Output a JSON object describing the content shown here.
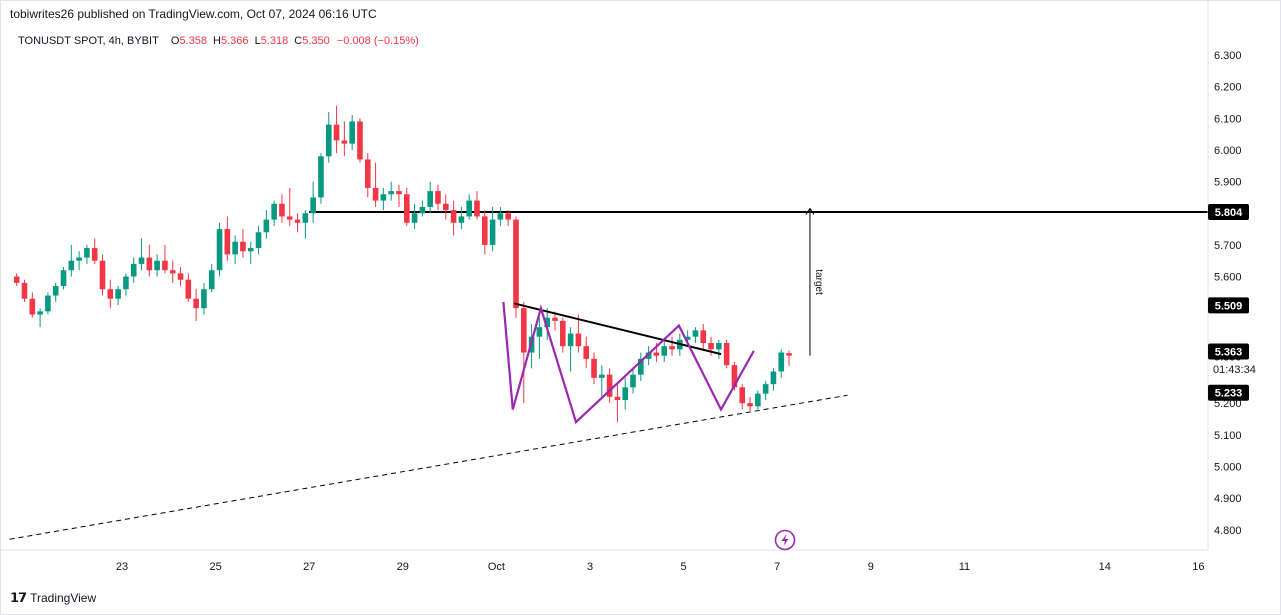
{
  "header": {
    "published": "tobiwrites26 published on TradingView.com, Oct 07, 2024 06:16 UTC",
    "symbol": "TONUSDT SPOT, 4h, BYBIT",
    "ohlc": [
      {
        "k": "O",
        "v": "5.358"
      },
      {
        "k": "H",
        "v": "5.366"
      },
      {
        "k": "L",
        "v": "5.318"
      },
      {
        "k": "C",
        "v": "5.350"
      }
    ],
    "change": "−0.008 (−0.15%)"
  },
  "footer": {
    "brand": "TradingView"
  },
  "colors": {
    "up": "#089981",
    "down": "#f23645",
    "pattern": "#9c27b0",
    "line": "#000000",
    "badge_bg": "#000000",
    "badge_text": "#ffffff"
  },
  "chart_data": {
    "type": "candlestick",
    "symbol": "TONUSDT",
    "timeframe": "4h",
    "ylim": [
      4.75,
      6.35
    ],
    "price_ticks": [
      "6.300",
      "6.200",
      "6.100",
      "6.000",
      "5.900",
      "5.800",
      "5.700",
      "5.600",
      "5.500",
      "5.400",
      "5.300",
      "5.200",
      "5.100",
      "5.000",
      "4.900",
      "4.800"
    ],
    "date_ticks": [
      {
        "label": "23",
        "day": 0
      },
      {
        "label": "25",
        "day": 2
      },
      {
        "label": "27",
        "day": 4
      },
      {
        "label": "29",
        "day": 6
      },
      {
        "label": "Oct",
        "day": 8
      },
      {
        "label": "3",
        "day": 10
      },
      {
        "label": "5",
        "day": 12
      },
      {
        "label": "7",
        "day": 14
      },
      {
        "label": "9",
        "day": 16
      },
      {
        "label": "11",
        "day": 18
      },
      {
        "label": "14",
        "day": 21
      },
      {
        "label": "16",
        "day": 23
      }
    ],
    "first_candle_day": -2.25,
    "candle_step_day": 0.1667,
    "ohlc": [
      [
        5.6,
        5.61,
        5.57,
        5.58
      ],
      [
        5.58,
        5.59,
        5.52,
        5.53
      ],
      [
        5.53,
        5.55,
        5.47,
        5.48
      ],
      [
        5.48,
        5.5,
        5.44,
        5.49
      ],
      [
        5.49,
        5.55,
        5.48,
        5.54
      ],
      [
        5.54,
        5.58,
        5.52,
        5.57
      ],
      [
        5.57,
        5.63,
        5.56,
        5.62
      ],
      [
        5.62,
        5.7,
        5.6,
        5.65
      ],
      [
        5.65,
        5.68,
        5.62,
        5.66
      ],
      [
        5.66,
        5.7,
        5.64,
        5.69
      ],
      [
        5.69,
        5.72,
        5.64,
        5.65
      ],
      [
        5.65,
        5.67,
        5.54,
        5.56
      ],
      [
        5.56,
        5.59,
        5.5,
        5.53
      ],
      [
        5.53,
        5.57,
        5.51,
        5.56
      ],
      [
        5.56,
        5.61,
        5.54,
        5.6
      ],
      [
        5.6,
        5.66,
        5.58,
        5.64
      ],
      [
        5.64,
        5.72,
        5.62,
        5.66
      ],
      [
        5.66,
        5.7,
        5.6,
        5.62
      ],
      [
        5.62,
        5.67,
        5.6,
        5.65
      ],
      [
        5.65,
        5.7,
        5.61,
        5.62
      ],
      [
        5.62,
        5.65,
        5.58,
        5.61
      ],
      [
        5.61,
        5.63,
        5.57,
        5.59
      ],
      [
        5.59,
        5.61,
        5.52,
        5.53
      ],
      [
        5.53,
        5.56,
        5.46,
        5.5
      ],
      [
        5.5,
        5.58,
        5.48,
        5.56
      ],
      [
        5.56,
        5.64,
        5.55,
        5.62
      ],
      [
        5.62,
        5.77,
        5.6,
        5.75
      ],
      [
        5.75,
        5.79,
        5.65,
        5.67
      ],
      [
        5.67,
        5.73,
        5.64,
        5.71
      ],
      [
        5.71,
        5.75,
        5.66,
        5.68
      ],
      [
        5.68,
        5.71,
        5.64,
        5.69
      ],
      [
        5.69,
        5.76,
        5.67,
        5.74
      ],
      [
        5.74,
        5.81,
        5.72,
        5.78
      ],
      [
        5.78,
        5.84,
        5.76,
        5.83
      ],
      [
        5.83,
        5.86,
        5.77,
        5.79
      ],
      [
        5.79,
        5.88,
        5.76,
        5.78
      ],
      [
        5.78,
        5.8,
        5.74,
        5.77
      ],
      [
        5.77,
        5.81,
        5.72,
        5.8
      ],
      [
        5.8,
        5.9,
        5.77,
        5.85
      ],
      [
        5.85,
        5.99,
        5.83,
        5.98
      ],
      [
        5.98,
        6.12,
        5.96,
        6.08
      ],
      [
        6.08,
        6.14,
        5.99,
        6.03
      ],
      [
        6.03,
        6.09,
        5.98,
        6.02
      ],
      [
        6.02,
        6.11,
        6.0,
        6.09
      ],
      [
        6.09,
        6.1,
        5.96,
        5.97
      ],
      [
        5.97,
        5.99,
        5.85,
        5.88
      ],
      [
        5.88,
        5.96,
        5.82,
        5.84
      ],
      [
        5.84,
        5.88,
        5.81,
        5.86
      ],
      [
        5.86,
        5.9,
        5.84,
        5.87
      ],
      [
        5.87,
        5.89,
        5.82,
        5.86
      ],
      [
        5.86,
        5.88,
        5.76,
        5.77
      ],
      [
        5.77,
        5.83,
        5.75,
        5.8
      ],
      [
        5.8,
        5.84,
        5.79,
        5.82
      ],
      [
        5.82,
        5.9,
        5.8,
        5.87
      ],
      [
        5.87,
        5.89,
        5.81,
        5.83
      ],
      [
        5.83,
        5.86,
        5.78,
        5.81
      ],
      [
        5.81,
        5.84,
        5.73,
        5.77
      ],
      [
        5.77,
        5.82,
        5.75,
        5.79
      ],
      [
        5.79,
        5.86,
        5.78,
        5.84
      ],
      [
        5.84,
        5.87,
        5.78,
        5.79
      ],
      [
        5.79,
        5.81,
        5.67,
        5.7
      ],
      [
        5.7,
        5.82,
        5.68,
        5.78
      ],
      [
        5.78,
        5.82,
        5.76,
        5.8
      ],
      [
        5.8,
        5.81,
        5.76,
        5.78
      ],
      [
        5.78,
        5.79,
        5.47,
        5.5
      ],
      [
        5.5,
        5.52,
        5.2,
        5.36
      ],
      [
        5.36,
        5.45,
        5.31,
        5.41
      ],
      [
        5.41,
        5.47,
        5.34,
        5.44
      ],
      [
        5.44,
        5.5,
        5.4,
        5.47
      ],
      [
        5.47,
        5.49,
        5.43,
        5.46
      ],
      [
        5.46,
        5.47,
        5.36,
        5.38
      ],
      [
        5.38,
        5.44,
        5.3,
        5.42
      ],
      [
        5.42,
        5.48,
        5.36,
        5.38
      ],
      [
        5.38,
        5.41,
        5.31,
        5.34
      ],
      [
        5.34,
        5.36,
        5.26,
        5.28
      ],
      [
        5.28,
        5.32,
        5.22,
        5.29
      ],
      [
        5.29,
        5.31,
        5.2,
        5.22
      ],
      [
        5.22,
        5.26,
        5.14,
        5.21
      ],
      [
        5.21,
        5.28,
        5.18,
        5.25
      ],
      [
        5.25,
        5.31,
        5.23,
        5.29
      ],
      [
        5.29,
        5.36,
        5.27,
        5.34
      ],
      [
        5.34,
        5.38,
        5.32,
        5.36
      ],
      [
        5.36,
        5.39,
        5.33,
        5.35
      ],
      [
        5.35,
        5.4,
        5.33,
        5.38
      ],
      [
        5.38,
        5.41,
        5.35,
        5.37
      ],
      [
        5.37,
        5.42,
        5.35,
        5.4
      ],
      [
        5.4,
        5.43,
        5.38,
        5.41
      ],
      [
        5.41,
        5.44,
        5.39,
        5.43
      ],
      [
        5.43,
        5.45,
        5.37,
        5.39
      ],
      [
        5.39,
        5.41,
        5.35,
        5.37
      ],
      [
        5.37,
        5.4,
        5.34,
        5.39
      ],
      [
        5.39,
        5.4,
        5.31,
        5.32
      ],
      [
        5.32,
        5.33,
        5.24,
        5.25
      ],
      [
        5.25,
        5.26,
        5.18,
        5.2
      ],
      [
        5.2,
        5.22,
        5.17,
        5.19
      ],
      [
        5.19,
        5.24,
        5.18,
        5.23
      ],
      [
        5.23,
        5.27,
        5.21,
        5.26
      ],
      [
        5.26,
        5.31,
        5.24,
        5.3
      ],
      [
        5.3,
        5.37,
        5.28,
        5.36
      ],
      [
        5.358,
        5.366,
        5.318,
        5.35
      ]
    ],
    "levels": [
      {
        "label": "5.804",
        "price": 5.804,
        "solid": true
      },
      {
        "label": "5.509",
        "price": 5.509
      },
      {
        "label": "5.363",
        "price": 5.363
      },
      {
        "label": "5.233",
        "price": 5.233
      }
    ],
    "current_price": "5.350",
    "countdown": "01:43:34",
    "annotations": {
      "target_text": "target",
      "pattern": "inverse head and shoulders",
      "resistance_neckline": [
        [
          8.38,
          5.515
        ],
        [
          12.8,
          5.355
        ]
      ],
      "support_dashed": [
        [
          -2.4,
          4.77
        ],
        [
          15.5,
          5.225
        ]
      ],
      "target_arrow": [
        [
          14.7,
          5.35
        ],
        [
          14.7,
          5.815
        ]
      ],
      "zigzag": [
        [
          8.15,
          5.52
        ],
        [
          8.35,
          5.18
        ],
        [
          8.95,
          5.5
        ],
        [
          9.7,
          5.14
        ],
        [
          11.9,
          5.445
        ],
        [
          12.8,
          5.18
        ],
        [
          13.5,
          5.365
        ]
      ],
      "horizontal_from_day": 4.0
    }
  }
}
